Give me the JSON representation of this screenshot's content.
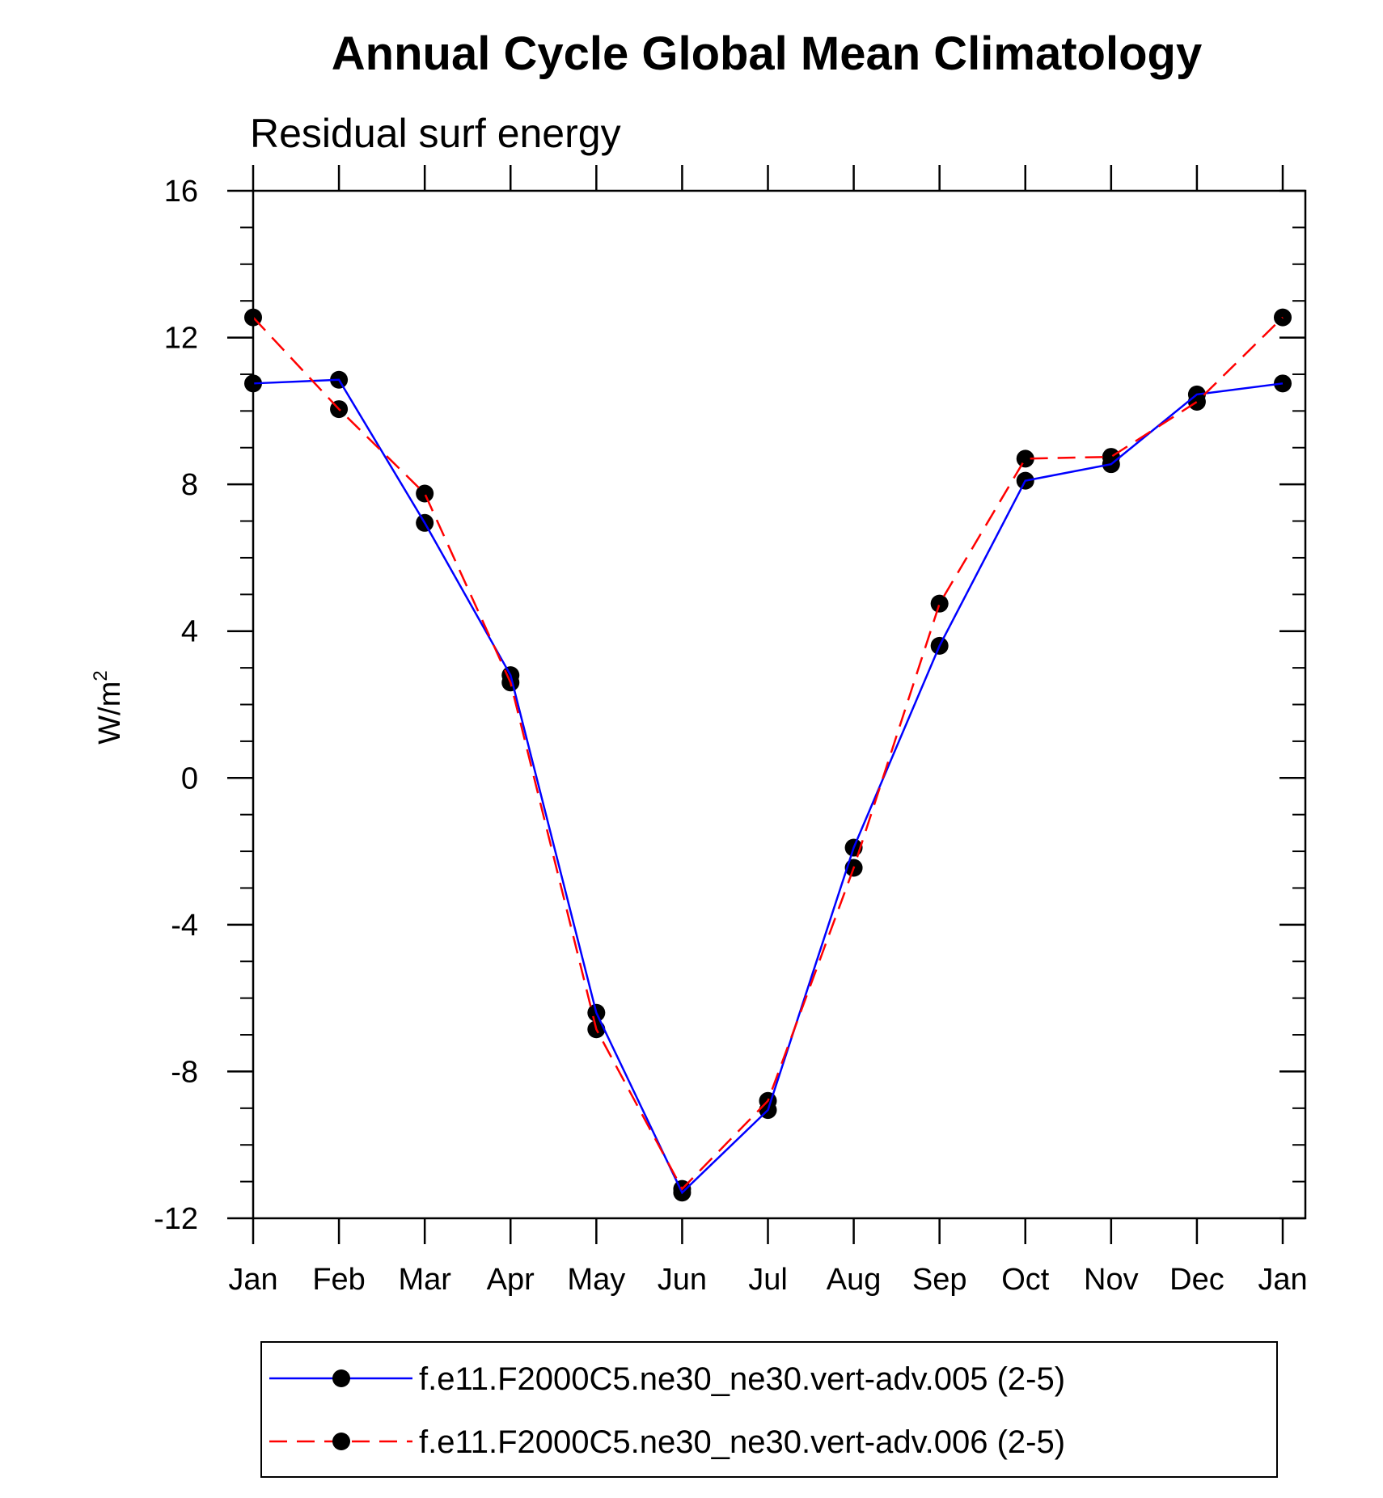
{
  "chart_data": {
    "type": "line",
    "title": "Annual Cycle Global Mean Climatology",
    "subtitle": "Residual surf energy",
    "ylabel_base": "W/m",
    "ylabel_sup": "2",
    "xlabel": "",
    "ylim": [
      -12,
      16
    ],
    "yticks": [
      16,
      12,
      8,
      4,
      0,
      -4,
      -8,
      -12
    ],
    "ytick_labels": [
      "16",
      "12",
      "8",
      "4",
      "0",
      "-4",
      "-8",
      "-12"
    ],
    "categories": [
      "Jan",
      "Feb",
      "Mar",
      "Apr",
      "May",
      "Jun",
      "Jul",
      "Aug",
      "Sep",
      "Oct",
      "Nov",
      "Dec",
      "Jan"
    ],
    "series": [
      {
        "name": "f.e11.F2000C5.ne30_ne30.vert-adv.005 (2-5)",
        "color": "#0000ff",
        "dash": "solid",
        "values": [
          10.75,
          10.85,
          6.95,
          2.8,
          -6.4,
          -11.3,
          -9.05,
          -1.9,
          3.6,
          8.1,
          8.55,
          10.45,
          10.75
        ]
      },
      {
        "name": "f.e11.F2000C5.ne30_ne30.vert-adv.006 (2-5)",
        "color": "#ff0000",
        "dash": "dashed",
        "values": [
          12.55,
          10.05,
          7.75,
          2.6,
          -6.85,
          -11.2,
          -8.8,
          -2.45,
          4.75,
          8.7,
          8.75,
          10.25,
          12.55
        ]
      }
    ],
    "legend_position": "bottom"
  }
}
